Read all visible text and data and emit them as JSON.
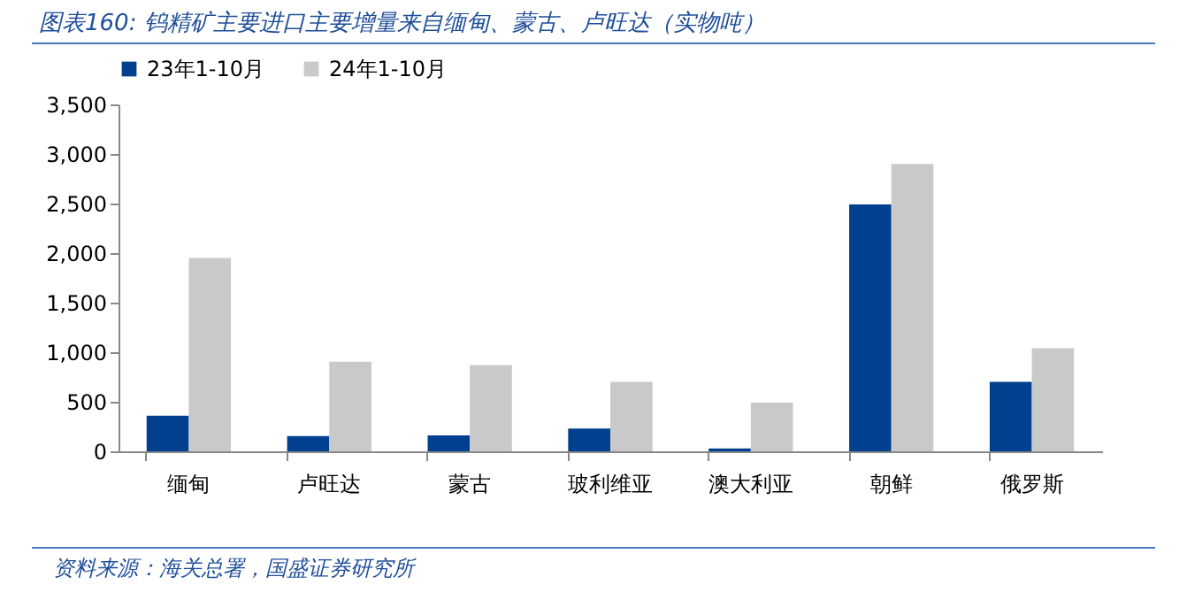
{
  "chart_data": {
    "type": "bar",
    "title": "图表160: 钨精矿主要进口主要增量来自缅甸、蒙古、卢旺达（实物吨）",
    "categories": [
      "缅甸",
      "卢旺达",
      "蒙古",
      "玻利维亚",
      "澳大利亚",
      "朝鲜",
      "俄罗斯"
    ],
    "series": [
      {
        "name": "23年1-10月",
        "color": "#00408f",
        "values": [
          360,
          155,
          160,
          230,
          30,
          2490,
          700
        ]
      },
      {
        "name": "24年1-10月",
        "color": "#c9c9c9",
        "values": [
          1950,
          905,
          870,
          700,
          490,
          2900,
          1040
        ]
      }
    ],
    "ylim": [
      0,
      3500
    ],
    "yticks": [
      0,
      {
        "value": 500,
        "label": "500"
      },
      {
        "value": 1000,
        "label": "1,000"
      },
      {
        "value": 1500,
        "label": "1,500"
      },
      {
        "value": 2000,
        "label": "2,000"
      },
      {
        "value": 2500,
        "label": "2,500"
      },
      {
        "value": 3000,
        "label": "3,000"
      },
      {
        "value": 3500,
        "label": "3,500"
      }
    ],
    "grid": false,
    "legend": "top",
    "annotations": [
      "资料来源：海关总署，国盛证券研究所"
    ]
  }
}
